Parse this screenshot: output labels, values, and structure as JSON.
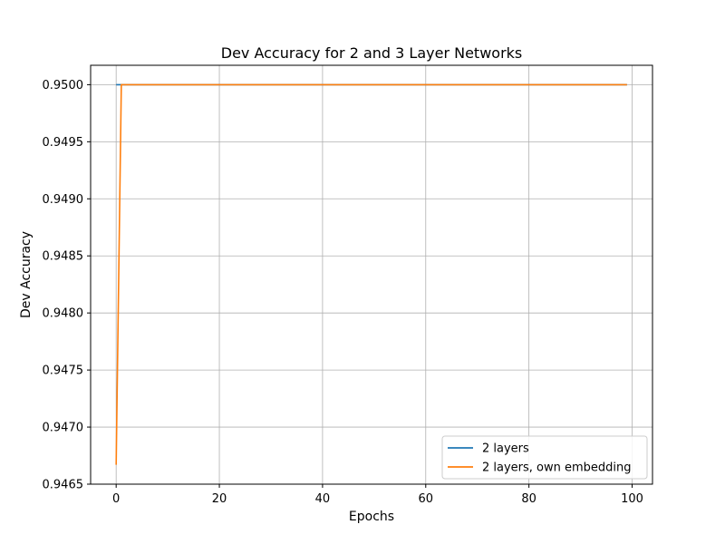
{
  "chart_data": {
    "type": "line",
    "title": "Dev Accuracy for 2 and 3 Layer Networks",
    "xlabel": "Epochs",
    "ylabel": "Dev Accuracy",
    "xlim": [
      -4.95,
      103.95
    ],
    "ylim": [
      0.9465,
      0.95017
    ],
    "xticks": [
      0,
      20,
      40,
      60,
      80,
      100
    ],
    "yticks": [
      0.9465,
      0.947,
      0.9475,
      0.948,
      0.9485,
      0.949,
      0.9495,
      0.95
    ],
    "ytick_labels": [
      "0.9465",
      "0.9470",
      "0.9475",
      "0.9480",
      "0.9485",
      "0.9490",
      "0.9495",
      "0.9500"
    ],
    "grid": true,
    "legend_position": "lower-right",
    "series": [
      {
        "name": "2 layers",
        "color": "#1f77b4",
        "points": [
          [
            0,
            0.95
          ],
          [
            99,
            0.95
          ]
        ]
      },
      {
        "name": "2 layers, own embedding",
        "color": "#ff7f0e",
        "points": [
          [
            0,
            0.94667
          ],
          [
            1,
            0.95
          ],
          [
            99,
            0.95
          ]
        ]
      }
    ]
  }
}
